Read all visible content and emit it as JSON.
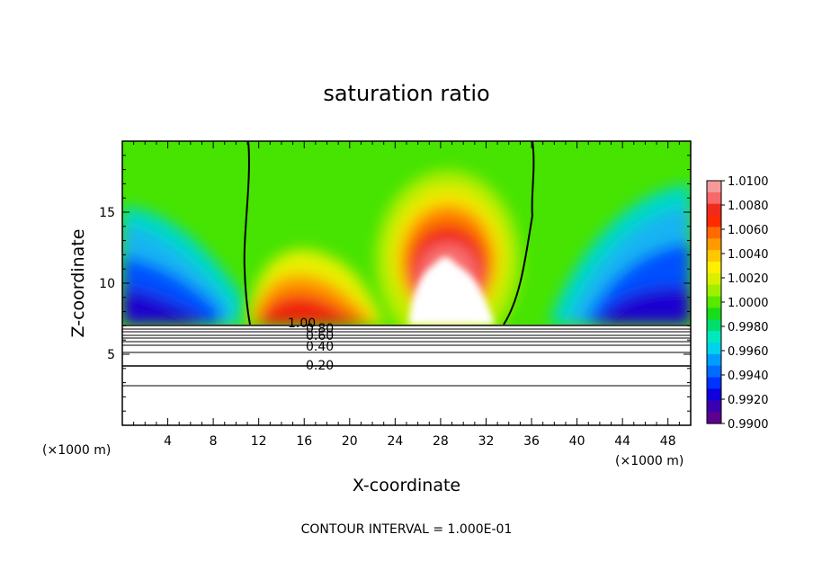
{
  "chart_data": {
    "type": "heatmap",
    "title": "saturation ratio",
    "xlabel": "X-coordinate",
    "ylabel": "Z-coordinate",
    "x_unit": "(×1000 m)",
    "xlim": [
      0,
      50
    ],
    "ylim": [
      0,
      20
    ],
    "x_ticks": [
      4,
      8,
      12,
      16,
      20,
      24,
      28,
      32,
      36,
      40,
      44,
      48
    ],
    "y_ticks": [
      5,
      10,
      15
    ],
    "colorbar": {
      "min": 0.99,
      "max": 1.01,
      "labels": [
        "1.0100",
        "1.0080",
        "1.0060",
        "1.0040",
        "1.0020",
        "1.0000",
        "0.9980",
        "0.9960",
        "0.9940",
        "0.9920",
        "0.9900"
      ],
      "colors": [
        "#f59a9a",
        "#f76868",
        "#ef2b1e",
        "#ff2a00",
        "#ff6a00",
        "#ff9a00",
        "#ffc800",
        "#ffee00",
        "#d9f000",
        "#9ef000",
        "#59e800",
        "#18dc18",
        "#00dd6a",
        "#00e8c0",
        "#00d2ea",
        "#009cff",
        "#006cff",
        "#0032ff",
        "#1000dd",
        "#3a00b0",
        "#5c0090"
      ]
    },
    "contour_interval": "CONTOUR INTERVAL = 1.000E-01",
    "contour_labels": [
      "1.00",
      "0.80",
      "0.60",
      "0.40",
      "0.20"
    ],
    "cloud_base_z": 7.2,
    "boundary_x": [
      11,
      35
    ]
  }
}
